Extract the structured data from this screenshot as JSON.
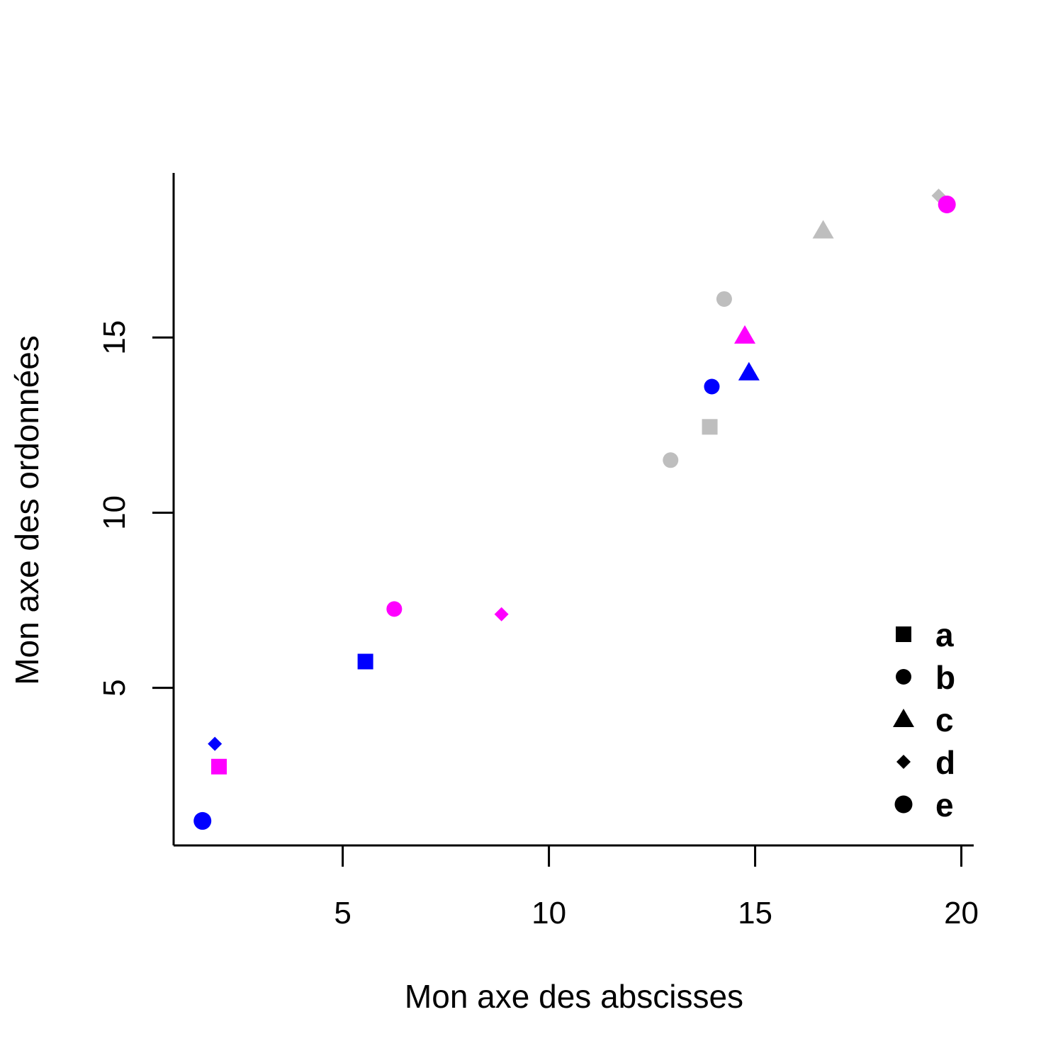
{
  "chart_data": {
    "type": "scatter",
    "title": "",
    "xlabel": "Mon axe des abscisses",
    "ylabel": "Mon axe des ordonnées",
    "xlim": [
      0.9,
      20.3
    ],
    "ylim": [
      0.5,
      19.7
    ],
    "x_ticks": [
      5,
      10,
      15,
      20
    ],
    "y_ticks": [
      5,
      10,
      15
    ],
    "x_tick_labels": [
      "5",
      "10",
      "15",
      "20"
    ],
    "y_tick_labels": [
      "5",
      "10",
      "15"
    ],
    "grid": false,
    "legend_position": "bottom-right",
    "legend": [
      {
        "label": "a",
        "shape": "square"
      },
      {
        "label": "b",
        "shape": "small-circle"
      },
      {
        "label": "c",
        "shape": "triangle"
      },
      {
        "label": "d",
        "shape": "diamond"
      },
      {
        "label": "e",
        "shape": "circle"
      }
    ],
    "colors": {
      "blue": "#0000ff",
      "magenta": "#ff00ff",
      "gray": "#bebebe",
      "legend": "#000000"
    },
    "points": [
      {
        "x": 1.6,
        "y": 1.2,
        "shape": "circle",
        "color": "blue"
      },
      {
        "x": 2.0,
        "y": 2.75,
        "shape": "square",
        "color": "magenta"
      },
      {
        "x": 1.9,
        "y": 3.4,
        "shape": "diamond",
        "color": "blue"
      },
      {
        "x": 5.55,
        "y": 5.75,
        "shape": "square",
        "color": "blue"
      },
      {
        "x": 6.25,
        "y": 7.25,
        "shape": "small-circle",
        "color": "magenta"
      },
      {
        "x": 8.85,
        "y": 7.1,
        "shape": "diamond",
        "color": "magenta"
      },
      {
        "x": 12.95,
        "y": 11.5,
        "shape": "small-circle",
        "color": "gray"
      },
      {
        "x": 13.9,
        "y": 12.45,
        "shape": "square",
        "color": "gray"
      },
      {
        "x": 13.95,
        "y": 13.6,
        "shape": "small-circle",
        "color": "blue"
      },
      {
        "x": 14.25,
        "y": 16.1,
        "shape": "small-circle",
        "color": "gray"
      },
      {
        "x": 14.75,
        "y": 15.05,
        "shape": "triangle",
        "color": "magenta"
      },
      {
        "x": 14.85,
        "y": 14.0,
        "shape": "triangle",
        "color": "blue"
      },
      {
        "x": 16.65,
        "y": 18.05,
        "shape": "triangle",
        "color": "gray"
      },
      {
        "x": 19.45,
        "y": 19.05,
        "shape": "diamond",
        "color": "gray"
      },
      {
        "x": 19.65,
        "y": 18.8,
        "shape": "circle",
        "color": "magenta"
      }
    ]
  }
}
